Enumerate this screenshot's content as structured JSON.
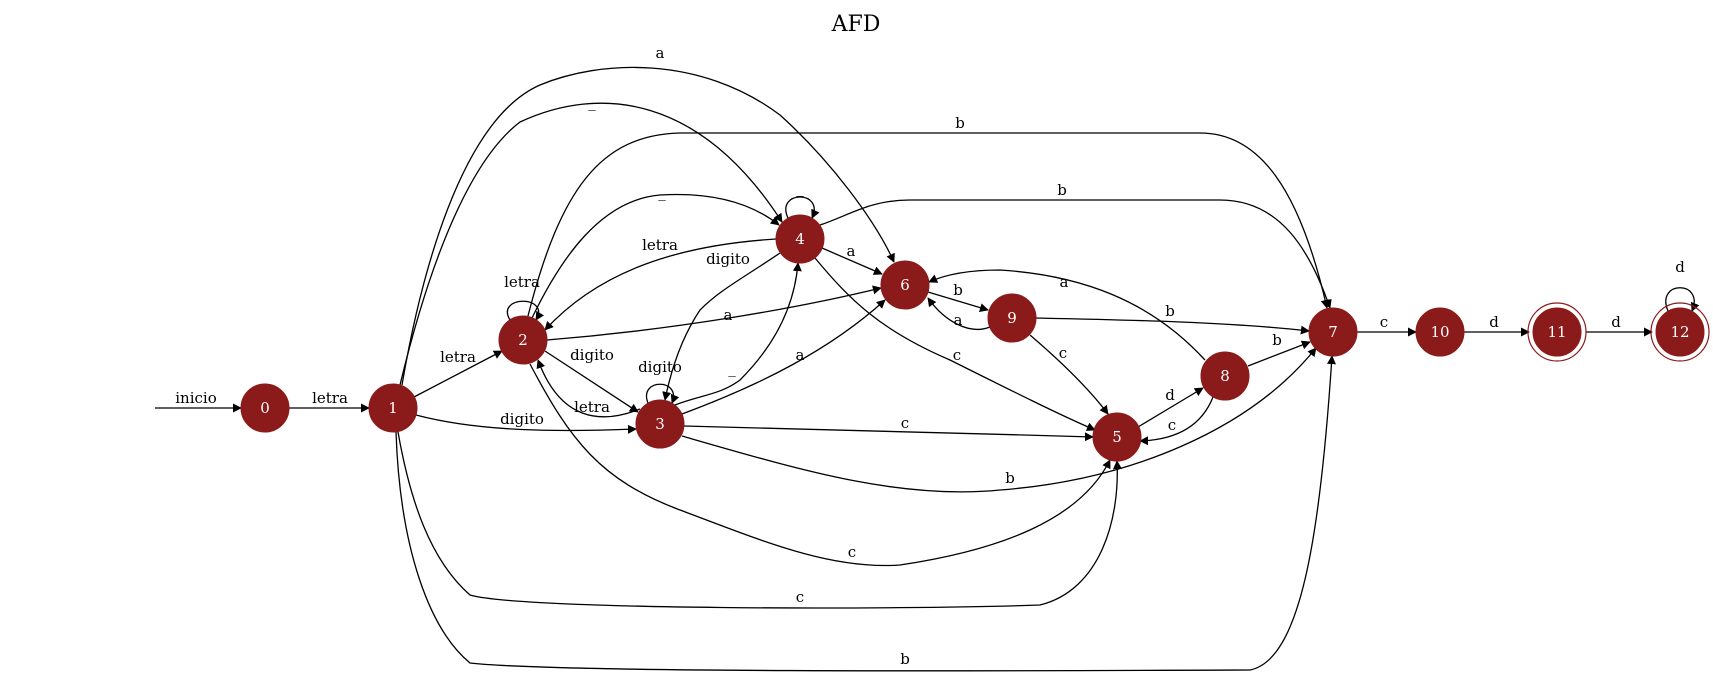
{
  "title": "AFD",
  "node_color": "#8b1a1a",
  "label_color": "#ffffff",
  "states": [
    {
      "id": "0",
      "accepting": false
    },
    {
      "id": "1",
      "accepting": false
    },
    {
      "id": "2",
      "accepting": false
    },
    {
      "id": "3",
      "accepting": false
    },
    {
      "id": "4",
      "accepting": false
    },
    {
      "id": "5",
      "accepting": false
    },
    {
      "id": "6",
      "accepting": false
    },
    {
      "id": "7",
      "accepting": false
    },
    {
      "id": "8",
      "accepting": false
    },
    {
      "id": "9",
      "accepting": false
    },
    {
      "id": "10",
      "accepting": false
    },
    {
      "id": "11",
      "accepting": true
    },
    {
      "id": "12",
      "accepting": true
    }
  ],
  "start": {
    "label": "inicio",
    "to": "0"
  },
  "transitions": [
    {
      "from": "0",
      "to": "1",
      "label": "letra"
    },
    {
      "from": "1",
      "to": "2",
      "label": "letra"
    },
    {
      "from": "1",
      "to": "3",
      "label": "digito"
    },
    {
      "from": "1",
      "to": "6",
      "label": "a"
    },
    {
      "from": "1",
      "to": "4",
      "label": "_"
    },
    {
      "from": "1",
      "to": "5",
      "label": "c"
    },
    {
      "from": "1",
      "to": "7",
      "label": "b"
    },
    {
      "from": "2",
      "to": "2",
      "label": "letra"
    },
    {
      "from": "2",
      "to": "3",
      "label": "digito"
    },
    {
      "from": "2",
      "to": "4",
      "label": "_"
    },
    {
      "from": "2",
      "to": "6",
      "label": "a"
    },
    {
      "from": "2",
      "to": "7",
      "label": "b"
    },
    {
      "from": "2",
      "to": "5",
      "label": "c"
    },
    {
      "from": "3",
      "to": "3",
      "label": "digito"
    },
    {
      "from": "3",
      "to": "2",
      "label": "letra"
    },
    {
      "from": "3",
      "to": "4",
      "label": "_"
    },
    {
      "from": "3",
      "to": "6",
      "label": "a"
    },
    {
      "from": "3",
      "to": "5",
      "label": "c"
    },
    {
      "from": "3",
      "to": "7",
      "label": "b"
    },
    {
      "from": "4",
      "to": "4",
      "label": "_"
    },
    {
      "from": "4",
      "to": "2",
      "label": "letra"
    },
    {
      "from": "4",
      "to": "3",
      "label": "digito"
    },
    {
      "from": "4",
      "to": "6",
      "label": "a"
    },
    {
      "from": "4",
      "to": "7",
      "label": "b"
    },
    {
      "from": "4",
      "to": "5",
      "label": "c"
    },
    {
      "from": "6",
      "to": "9",
      "label": "b"
    },
    {
      "from": "9",
      "to": "6",
      "label": "a"
    },
    {
      "from": "9",
      "to": "7",
      "label": "b"
    },
    {
      "from": "9",
      "to": "5",
      "label": "c"
    },
    {
      "from": "5",
      "to": "8",
      "label": "d"
    },
    {
      "from": "8",
      "to": "5",
      "label": "c"
    },
    {
      "from": "8",
      "to": "6",
      "label": "a"
    },
    {
      "from": "8",
      "to": "7",
      "label": "b"
    },
    {
      "from": "7",
      "to": "10",
      "label": "c"
    },
    {
      "from": "10",
      "to": "11",
      "label": "d"
    },
    {
      "from": "11",
      "to": "12",
      "label": "d"
    },
    {
      "from": "12",
      "to": "12",
      "label": "d"
    }
  ]
}
